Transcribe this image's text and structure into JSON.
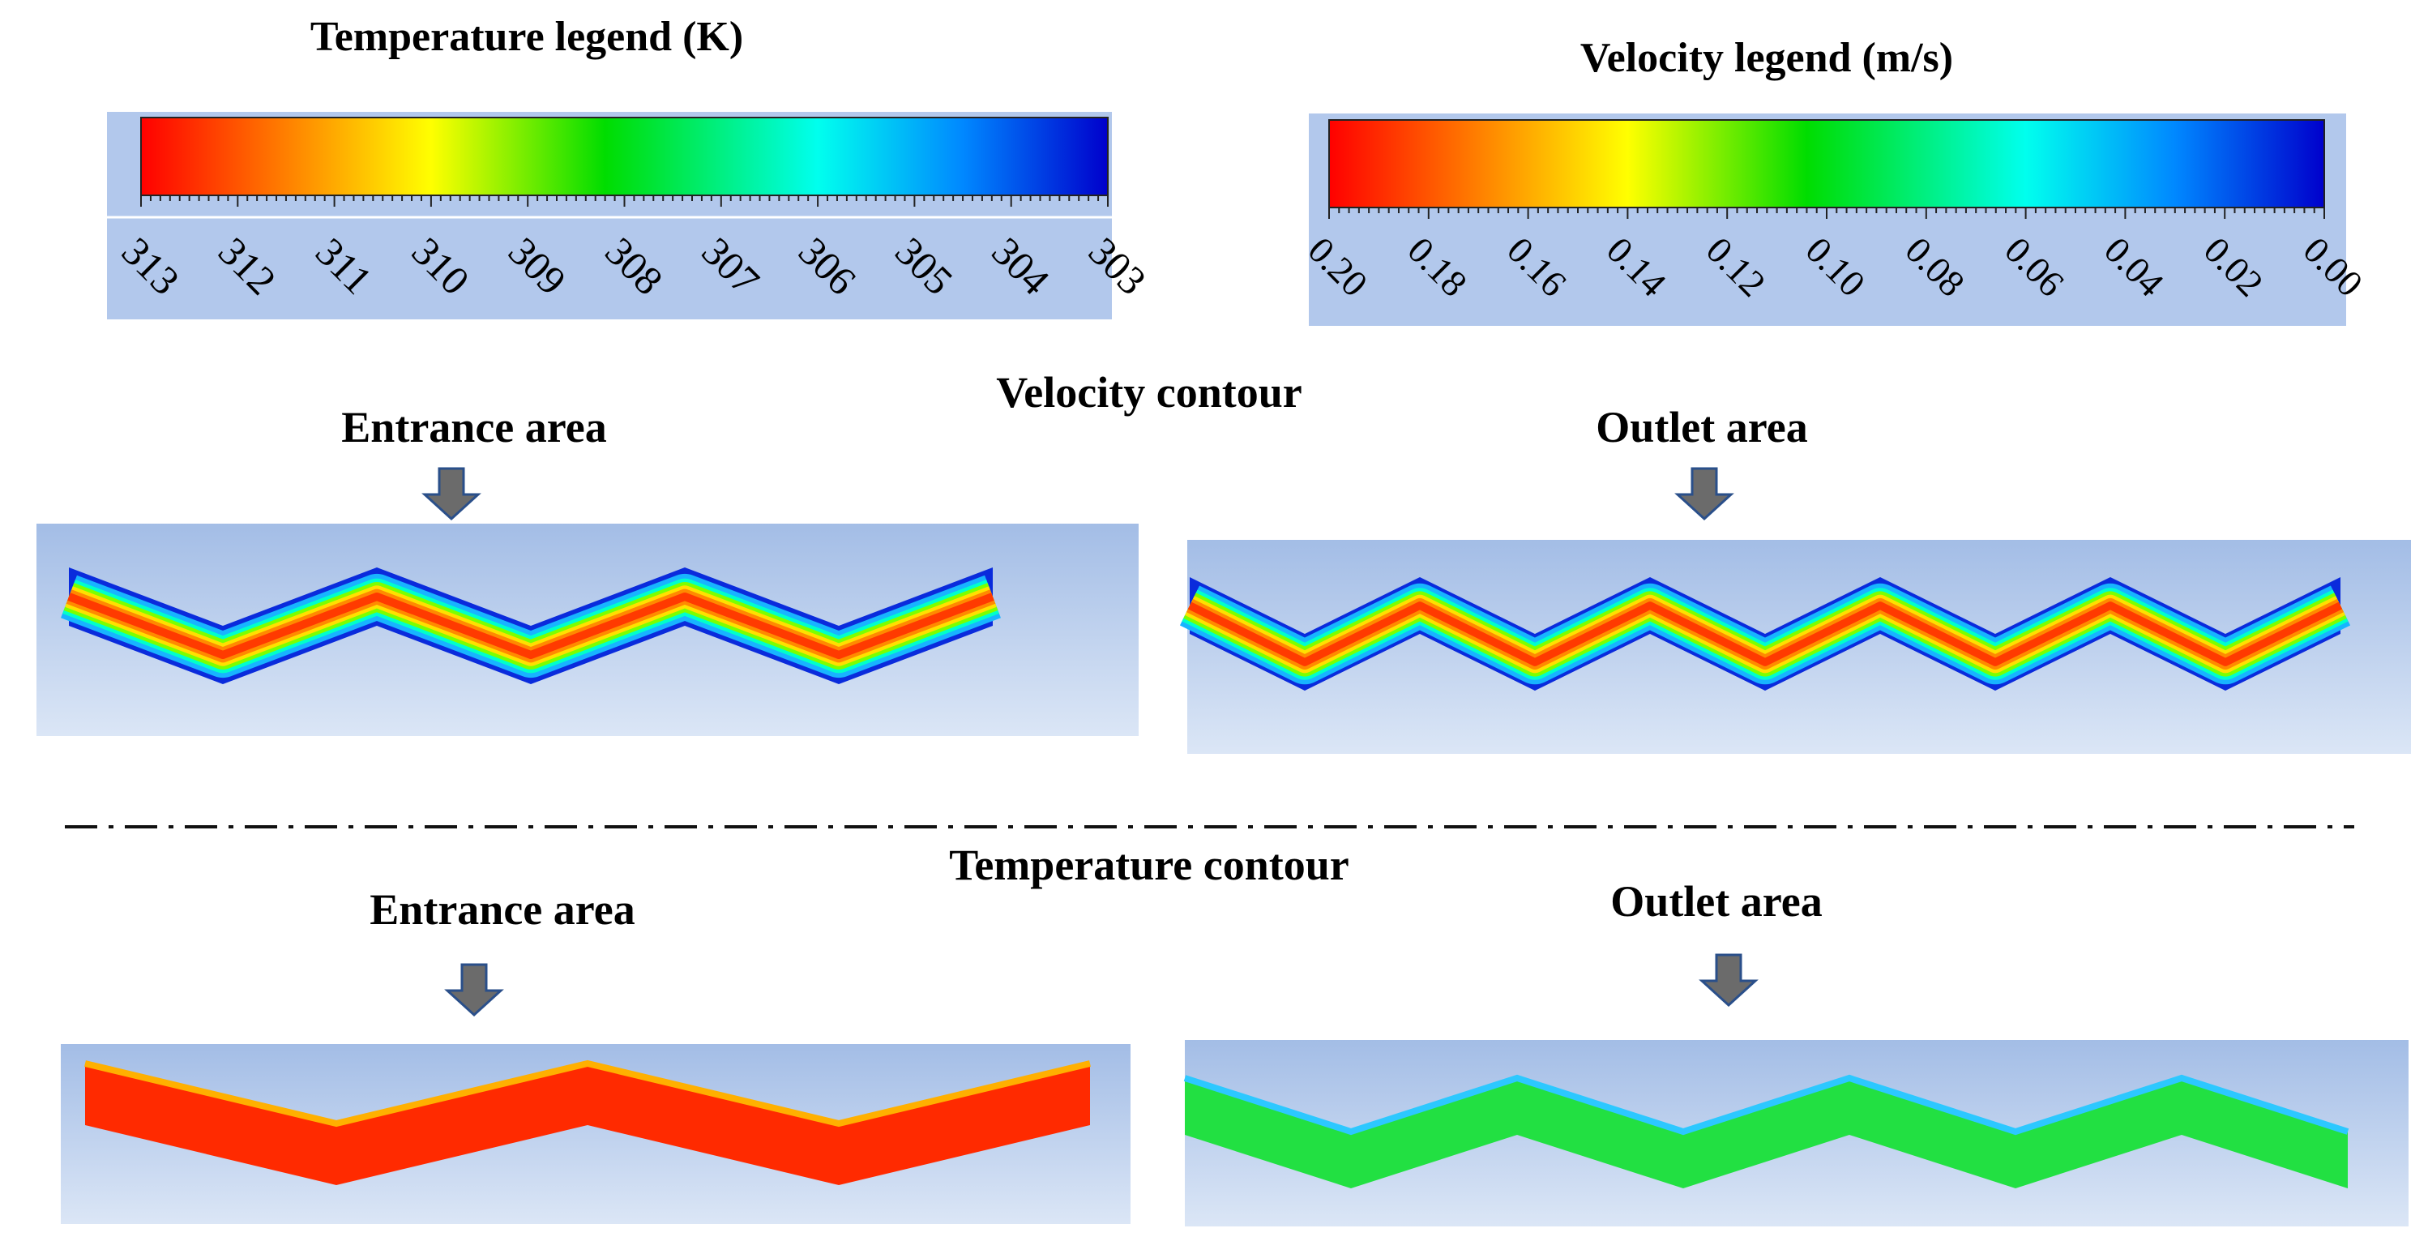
{
  "figure": {
    "temperature_legend": {
      "title": "Temperature legend (K)",
      "ticks": [
        "313",
        "312",
        "311",
        "310",
        "309",
        "308",
        "307",
        "306",
        "305",
        "304",
        "303"
      ]
    },
    "velocity_legend": {
      "title": "Velocity legend (m/s)",
      "ticks": [
        "0.20",
        "0.18",
        "0.16",
        "0.14",
        "0.12",
        "0.10",
        "0.08",
        "0.06",
        "0.04",
        "0.02",
        "0.00"
      ]
    },
    "velocity_section": {
      "title": "Velocity contour",
      "entrance_label": "Entrance area",
      "outlet_label": "Outlet area"
    },
    "temperature_section": {
      "title": "Temperature contour",
      "entrance_label": "Entrance area",
      "outlet_label": "Outlet area"
    },
    "colormap": [
      "#ff0000",
      "#ff8800",
      "#ffff00",
      "#00dd00",
      "#00ffee",
      "#0088ff",
      "#0000cc"
    ],
    "colors": {
      "panel_top": "#a3bde6",
      "panel_bottom": "#dbe6f6",
      "arrow": "#6b6b6b",
      "arrow_outline": "#2a4f8a",
      "temp_entrance": "#ff2a00",
      "temp_outlet": "#22e042"
    }
  }
}
